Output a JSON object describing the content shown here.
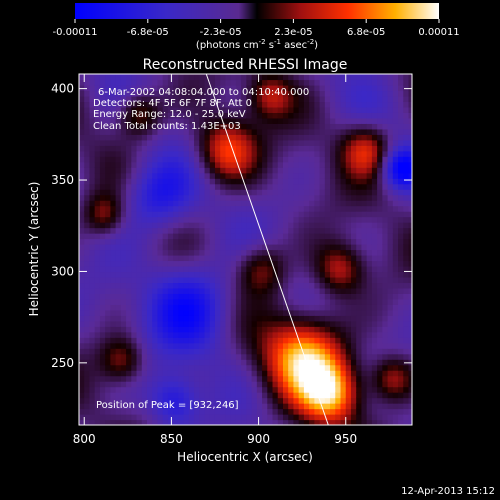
{
  "chart_data": {
    "type": "heatmap",
    "title": "Reconstructed RHESSI Image",
    "xlabel": "Heliocentric X (arcsec)",
    "ylabel": "Heliocentric Y (arcsec)",
    "xlim": [
      797,
      988
    ],
    "ylim": [
      216,
      408
    ],
    "x_ticks": [
      800,
      850,
      900,
      950
    ],
    "y_ticks": [
      250,
      300,
      350,
      400
    ],
    "colorbar": {
      "ticks": [
        "-0.00011",
        "-6.8e-05",
        "-2.3e-05",
        "2.3e-05",
        "6.8e-05",
        "0.00011"
      ],
      "units_text": "(photons cm",
      "units_exp1": "-2",
      "units_mid": " s",
      "units_exp2": "-1",
      "units_end": " asec",
      "units_exp3": "-2",
      "units_close": ")",
      "range": [
        -0.00011,
        0.00011
      ]
    },
    "annotations": [
      "6-Mar-2002 04:08:04.000 to 04:10:40.000",
      "Detectors: 4F 5F 6F 7F 8F, Att 0",
      "Energy Range: 12.0 - 25.0 keV",
      "Clean     Total counts: 1.43E+03",
      "Position of Peak = [932,246]"
    ],
    "peak": [
      932,
      246
    ],
    "limb_line": [
      [
        870,
        408
      ],
      [
        940,
        216
      ]
    ],
    "blobs": [
      {
        "x": 925,
        "y": 252,
        "v": 1.0,
        "s": 16
      },
      {
        "x": 940,
        "y": 232,
        "v": 0.85,
        "s": 12
      },
      {
        "x": 880,
        "y": 365,
        "v": 0.75,
        "s": 12
      },
      {
        "x": 945,
        "y": 300,
        "v": 0.6,
        "s": 10
      },
      {
        "x": 960,
        "y": 365,
        "v": 0.6,
        "s": 10
      },
      {
        "x": 975,
        "y": 240,
        "v": 0.6,
        "s": 9
      },
      {
        "x": 830,
        "y": 385,
        "v": 0.55,
        "s": 9
      },
      {
        "x": 820,
        "y": 250,
        "v": 0.5,
        "s": 9
      },
      {
        "x": 810,
        "y": 330,
        "v": 0.45,
        "s": 8
      },
      {
        "x": 900,
        "y": 300,
        "v": 0.5,
        "s": 10
      },
      {
        "x": 905,
        "y": 395,
        "v": 0.5,
        "s": 9
      },
      {
        "x": 860,
        "y": 280,
        "v": -0.6,
        "s": 18
      },
      {
        "x": 840,
        "y": 340,
        "v": -0.55,
        "s": 14
      },
      {
        "x": 980,
        "y": 355,
        "v": -0.7,
        "s": 8
      },
      {
        "x": 850,
        "y": 228,
        "v": -0.5,
        "s": 10
      }
    ]
  },
  "footer": {
    "date": "12-Apr-2013 15:12"
  }
}
